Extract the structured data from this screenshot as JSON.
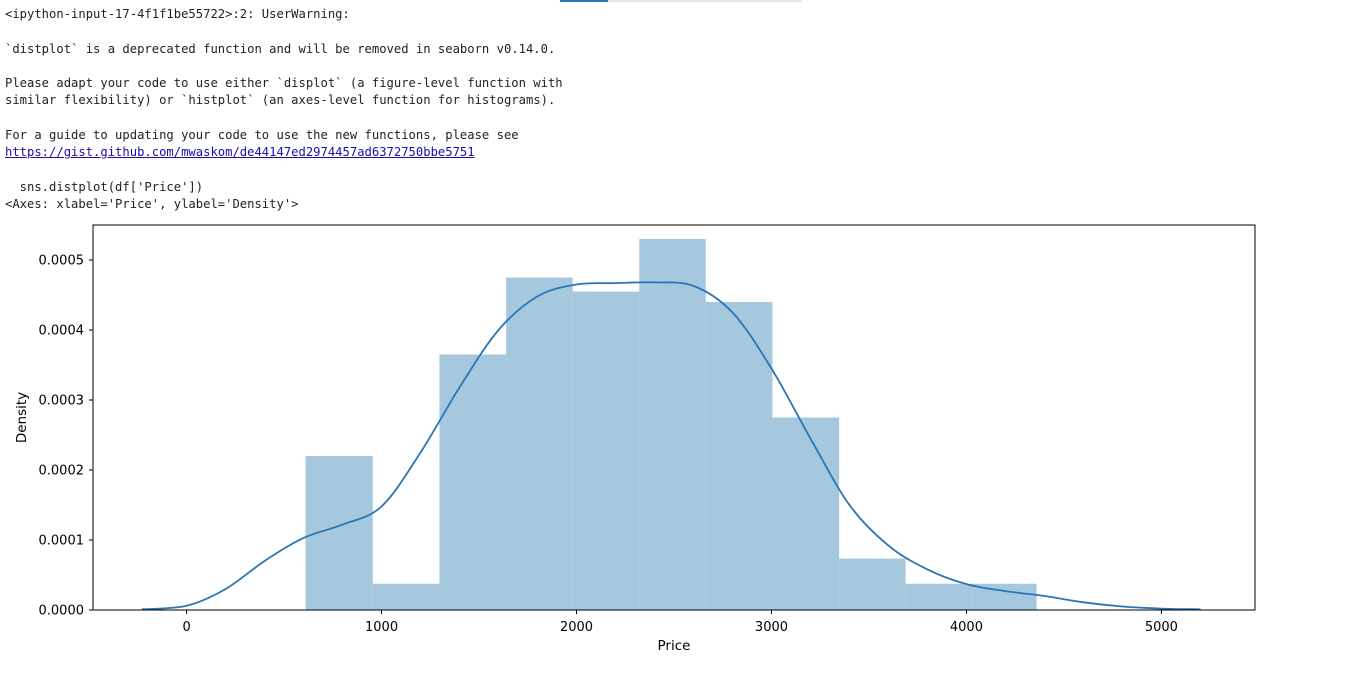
{
  "output": {
    "warning_header": "<ipython-input-17-4f1f1be55722>:2: UserWarning:",
    "deprecation_line": "`distplot` is a deprecated function and will be removed in seaborn v0.14.0.",
    "adapt_line1": "Please adapt your code to use either `displot` (a figure-level function with",
    "adapt_line2": "similar flexibility) or `histplot` (an axes-level function for histograms).",
    "guide_line": "For a guide to updating your code to use the new functions, please see",
    "guide_url": "https://gist.github.com/mwaskom/de44147ed2974457ad6372750bbe5751",
    "source_line": "  sns.distplot(df['Price'])",
    "result_repr": "<Axes: xlabel='Price', ylabel='Density'>"
  },
  "colors": {
    "hist_fill": "#a6c8df",
    "kde_line": "#2a76b5",
    "link": "#1a0dab"
  },
  "chart_data": {
    "type": "bar",
    "subtype": "histogram with KDE",
    "xlabel": "Price",
    "ylabel": "Density",
    "xlim": [
      -480,
      5480
    ],
    "ylim": [
      0,
      0.00055
    ],
    "xticks": [
      0,
      1000,
      2000,
      3000,
      4000,
      5000
    ],
    "yticks": [
      0.0,
      0.0001,
      0.0002,
      0.0003,
      0.0004,
      0.0005
    ],
    "ytick_labels": [
      "0.0000",
      "0.0001",
      "0.0002",
      "0.0003",
      "0.0004",
      "0.0005"
    ],
    "bin_edges": [
      610,
      955,
      1297,
      1639,
      1980,
      2322,
      2663,
      3005,
      3347,
      3688,
      4030,
      4360
    ],
    "bin_density": [
      0.00022,
      3.75e-05,
      0.000365,
      0.000475,
      0.000455,
      0.00053,
      0.00044,
      0.000275,
      7.35e-05,
      3.75e-05,
      3.75e-05
    ],
    "kde": {
      "name": "",
      "x": [
        -230,
        0,
        200,
        400,
        600,
        800,
        1000,
        1200,
        1400,
        1600,
        1800,
        2000,
        2200,
        2400,
        2600,
        2800,
        3000,
        3200,
        3400,
        3600,
        3800,
        4000,
        4200,
        4400,
        4600,
        4800,
        5000,
        5200
      ],
      "y": [
        1e-06,
        6e-06,
        3e-05,
        7e-05,
        0.000103,
        0.000122,
        0.000148,
        0.000225,
        0.000318,
        0.0004,
        0.000448,
        0.000465,
        0.000467,
        0.000468,
        0.000463,
        0.000425,
        0.000345,
        0.000245,
        0.00015,
        9.2e-05,
        5.8e-05,
        3.7e-05,
        2.7e-05,
        2e-05,
        1.1e-05,
        5e-06,
        2e-06,
        1e-06
      ]
    },
    "grid": false,
    "legend": "none"
  }
}
